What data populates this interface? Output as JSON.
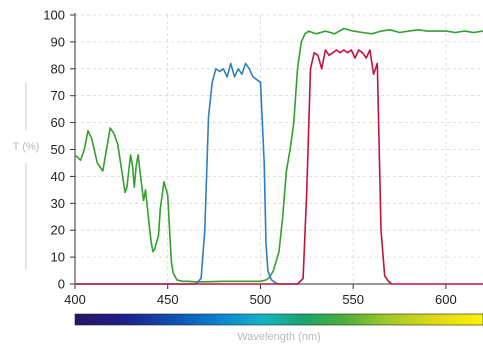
{
  "chart_data": {
    "type": "line",
    "xlabel": "Wavelength (nm)",
    "ylabel": "T (%)",
    "xlim": [
      400,
      620
    ],
    "ylim": [
      0,
      100
    ],
    "x_ticks": [
      400,
      450,
      500,
      550,
      600
    ],
    "y_ticks": [
      0,
      10,
      20,
      30,
      40,
      50,
      60,
      70,
      80,
      90,
      100
    ],
    "grid": true,
    "legend": "none",
    "spectrum_bar": true,
    "series": [
      {
        "color": "#33a02c",
        "x": [
          400,
          403,
          405,
          407,
          409,
          412,
          415,
          417,
          419,
          421,
          423,
          425,
          427,
          428,
          430,
          431,
          432,
          433,
          434,
          435,
          437,
          438,
          440,
          441,
          442,
          443,
          445,
          446,
          448,
          450,
          451,
          452,
          453,
          455,
          458,
          461,
          465,
          470,
          480,
          490,
          495,
          500,
          503,
          505,
          507,
          510,
          512,
          514,
          516,
          518,
          520,
          522,
          524,
          526,
          528,
          530,
          535,
          540,
          545,
          550,
          555,
          560,
          565,
          570,
          575,
          580,
          585,
          590,
          595,
          600,
          605,
          610,
          615,
          620
        ],
        "y": [
          48,
          46,
          50,
          57,
          54,
          45,
          42,
          50,
          58,
          56,
          52,
          43,
          34,
          36,
          48,
          44,
          36,
          44,
          48,
          42,
          31,
          35,
          22,
          16,
          12,
          13,
          18,
          28,
          38,
          33,
          20,
          8,
          4,
          1.5,
          1,
          1,
          0.8,
          0.8,
          1,
          1,
          1,
          1,
          1.5,
          2.5,
          5,
          12,
          25,
          42,
          50,
          60,
          80,
          90,
          93,
          94,
          93.5,
          93,
          94,
          93,
          95,
          94,
          93.5,
          93,
          94,
          94.5,
          93.5,
          94,
          94.5,
          94,
          94,
          94,
          93.5,
          94,
          93.5,
          94
        ]
      },
      {
        "color": "#2f7ec0",
        "x": [
          400,
          450,
          460,
          465,
          468,
          470,
          472,
          474,
          476,
          478,
          480,
          482,
          484,
          486,
          488,
          490,
          492,
          494,
          496,
          498,
          500,
          502,
          503,
          504,
          505,
          506,
          507,
          508,
          510,
          515,
          520
        ],
        "y": [
          0,
          0,
          0,
          0,
          2,
          20,
          62,
          75,
          80,
          79,
          80,
          77,
          82,
          77,
          80,
          78,
          82,
          80,
          77,
          76,
          75,
          45,
          15,
          5,
          3,
          1.5,
          1,
          0.5,
          0,
          0,
          0
        ],
        "segments_note": ""
      },
      {
        "color": "#c0143c",
        "x": [
          400,
          510,
          515,
          520,
          523,
          525,
          527,
          529,
          531,
          533,
          535,
          537,
          539,
          541,
          543,
          545,
          547,
          549,
          551,
          553,
          555,
          557,
          559,
          561,
          563,
          565,
          567,
          569,
          571,
          573,
          575,
          580,
          620
        ],
        "y": [
          0,
          0,
          0,
          0,
          2,
          35,
          80,
          86,
          85,
          80,
          87,
          85,
          86,
          87,
          86,
          87,
          86,
          87,
          84,
          87,
          86,
          84,
          87,
          78,
          82,
          20,
          3,
          1,
          0,
          0,
          0,
          0,
          0
        ]
      }
    ]
  }
}
